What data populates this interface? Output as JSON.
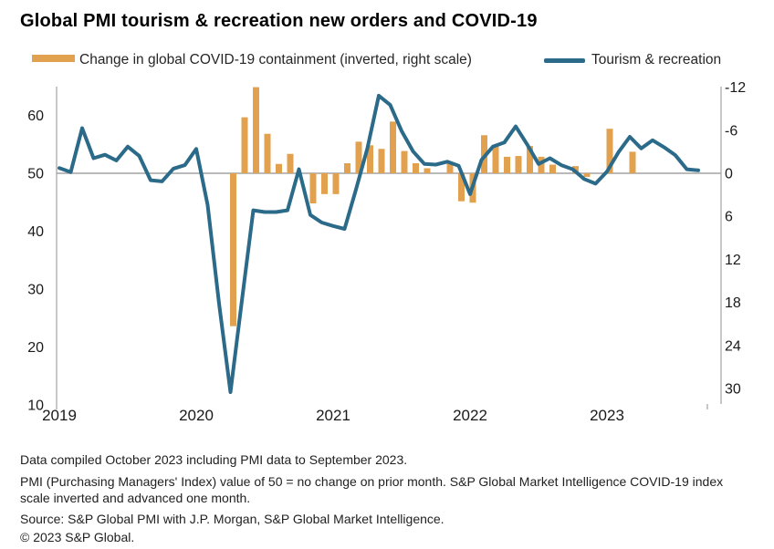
{
  "title": "Global PMI tourism & recreation new orders and COVID-19",
  "legend": {
    "items": [
      {
        "label": "Change in global COVID-19 containment (inverted, right scale)",
        "type": "bar"
      },
      {
        "label": "Tourism & recreation",
        "type": "line"
      }
    ]
  },
  "colors": {
    "bar": "#E2A14F",
    "line": "#2B6A89",
    "zero_line": "#A3A3A3",
    "axis_line": "#ABABAB",
    "text": "#1A1A1A"
  },
  "chart_data": {
    "type": "combo",
    "title": "Global PMI tourism & recreation new orders and COVID-19",
    "x_monthly": [
      "2019-01",
      "2019-02",
      "2019-03",
      "2019-04",
      "2019-05",
      "2019-06",
      "2019-07",
      "2019-08",
      "2019-09",
      "2019-10",
      "2019-11",
      "2019-12",
      "2020-01",
      "2020-02",
      "2020-03",
      "2020-04",
      "2020-05",
      "2020-06",
      "2020-07",
      "2020-08",
      "2020-09",
      "2020-10",
      "2020-11",
      "2020-12",
      "2021-01",
      "2021-02",
      "2021-03",
      "2021-04",
      "2021-05",
      "2021-06",
      "2021-07",
      "2021-08",
      "2021-09",
      "2021-10",
      "2021-11",
      "2021-12",
      "2022-01",
      "2022-02",
      "2022-03",
      "2022-04",
      "2022-05",
      "2022-06",
      "2022-07",
      "2022-08",
      "2022-09",
      "2022-10",
      "2022-11",
      "2022-12",
      "2023-01",
      "2023-02",
      "2023-03",
      "2023-04",
      "2023-05",
      "2023-06",
      "2023-07",
      "2023-08",
      "2023-09"
    ],
    "series": [
      {
        "name": "Change in global COVID-19 containment (inverted, right scale)",
        "type": "bar",
        "axis": "right",
        "note": "values as read on the inverted right scale; negative values plot above the zero line, null = no bar drawn",
        "values": [
          null,
          null,
          null,
          null,
          null,
          null,
          null,
          null,
          null,
          null,
          null,
          null,
          null,
          null,
          null,
          21.3,
          -7.8,
          -12.0,
          -5.5,
          -1.3,
          -2.7,
          null,
          4.2,
          2.9,
          2.9,
          -1.4,
          -4.4,
          -3.9,
          -3.4,
          -7.2,
          -3.1,
          -1.4,
          -0.7,
          null,
          -1.4,
          3.9,
          4.1,
          -5.3,
          -4.0,
          -2.3,
          -2.4,
          -3.8,
          -2.3,
          -1.2,
          null,
          -1.0,
          0.5,
          null,
          -6.2,
          null,
          -3.0,
          null,
          null,
          null,
          null,
          null,
          null
        ]
      },
      {
        "name": "Tourism & recreation",
        "type": "line",
        "axis": "left",
        "values": [
          50.9,
          50.2,
          57.8,
          52.6,
          53.2,
          52.2,
          54.6,
          53.0,
          48.8,
          48.6,
          50.8,
          51.4,
          54.2,
          44.5,
          27.5,
          12.2,
          28.0,
          43.6,
          43.3,
          43.3,
          43.6,
          50.7,
          42.8,
          41.5,
          40.9,
          40.4,
          47.2,
          54.3,
          63.4,
          61.8,
          57.3,
          53.8,
          51.6,
          51.5,
          52.0,
          51.3,
          46.4,
          52.3,
          54.6,
          55.3,
          58.1,
          55.0,
          51.6,
          52.6,
          51.4,
          50.7,
          49.0,
          48.2,
          50.3,
          53.6,
          56.3,
          54.3,
          55.7,
          54.5,
          53.1,
          50.7,
          50.5
        ]
      }
    ],
    "left_axis": {
      "ticks": [
        60,
        50,
        40,
        30,
        20,
        10
      ],
      "min": 10,
      "max": 65,
      "baseline": 50
    },
    "right_axis": {
      "ticks": [
        -12,
        -6,
        0,
        6,
        12,
        18,
        24,
        30
      ],
      "min": -12,
      "max": 32,
      "inverted": true,
      "baseline": 0
    },
    "x_axis": {
      "labels": [
        "2019",
        "2020",
        "2021",
        "2022",
        "2023"
      ],
      "month_index": [
        0,
        12,
        24,
        36,
        48
      ]
    },
    "grid": "zero-baseline-only",
    "legend_position": "top"
  },
  "footnotes": [
    "Data compiled October 2023 including PMI data to September 2023.",
    "PMI (Purchasing Managers' Index) value of 50 = no change on prior month. S&P Global Market Intelligence COVID-19 index scale inverted and advanced one month.",
    "Source: S&P Global PMI with J.P. Morgan, S&P Global Market Intelligence.",
    "© 2023 S&P Global."
  ]
}
